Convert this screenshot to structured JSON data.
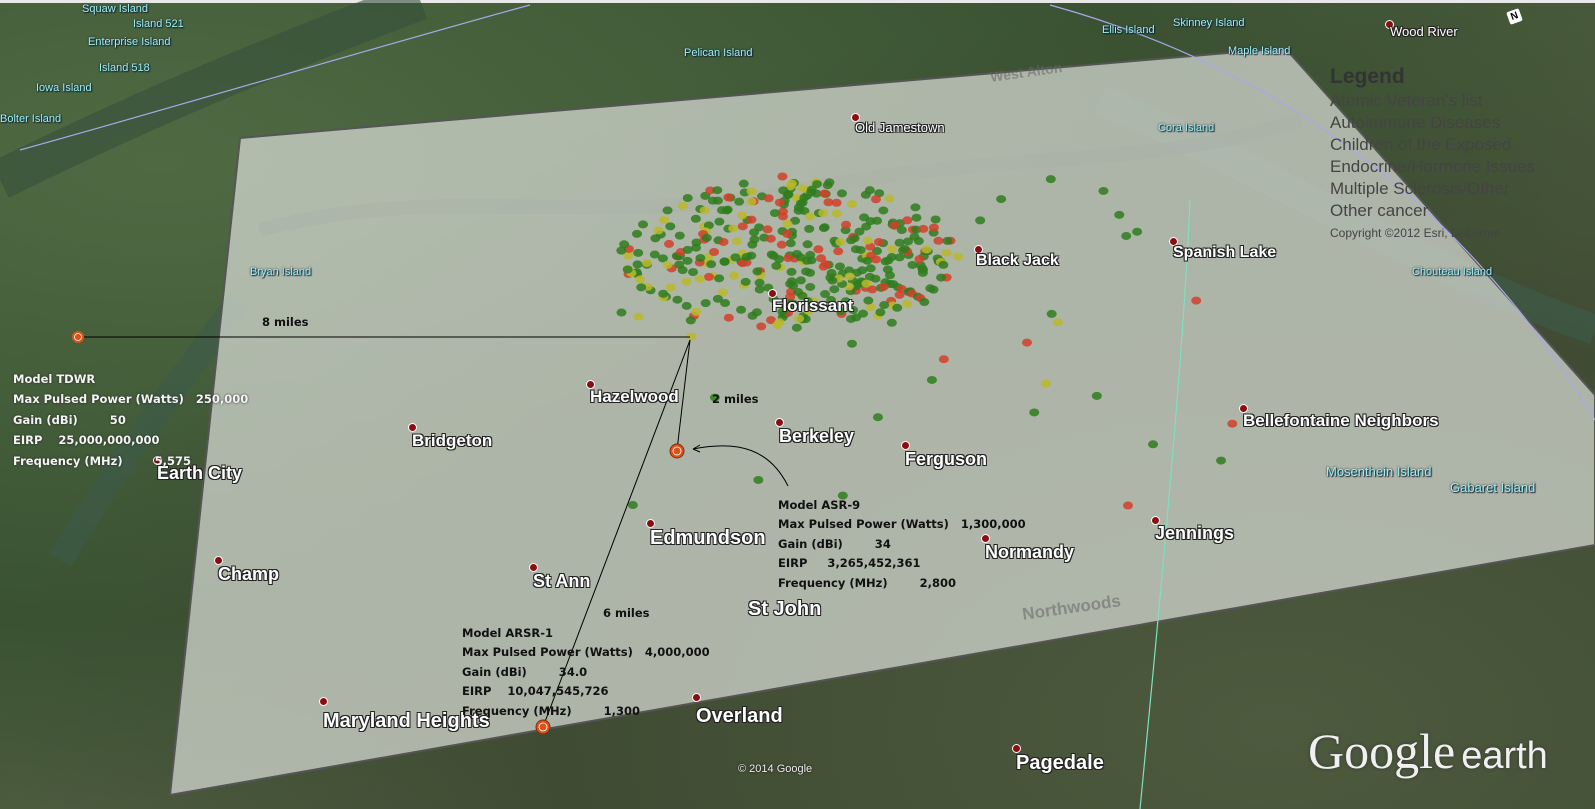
{
  "islands": [
    "Squaw Island",
    "Island 521",
    "Enterprise Island",
    "Island 518",
    "Iowa Island",
    "Bolter Island",
    "Pelican Island",
    "Ellis Island",
    "Skinney Island",
    "Maple Island",
    "Cora Island",
    "Bryan Island",
    "Chouteau Island",
    "Mosenthein Island",
    "Gabaret Island"
  ],
  "places": [
    "Wood River",
    "Old Jamestown",
    "Black Jack",
    "Spanish Lake",
    "Florissant",
    "Hazelwood",
    "Bridgeton",
    "Earth City",
    "Berkeley",
    "Ferguson",
    "Bellefontaine Neighbors",
    "Edmundson",
    "Normandy",
    "Jennings",
    "Champ",
    "St Ann",
    "St John",
    "Maryland Heights",
    "Overland",
    "Pagedale"
  ],
  "overlay_ghost_labels": [
    "West Alton",
    "Northwoods"
  ],
  "legend": {
    "title": "Legend",
    "items": [
      "Atomic Veteran's list",
      "Autoimmune Diseases",
      "Children of the Exposed",
      "Endocrine/Hormone Issues",
      "Multiple Sclerosis/Other",
      "Other cancer"
    ],
    "copyright": "Copyright ©2012 Esri, DeLorme"
  },
  "radars": [
    {
      "lines": [
        "Model TDWR",
        "Max Pulsed Power (Watts)   250,000",
        "Gain (dBi)        50",
        "EIRP    25,000,000,000",
        "Frequency (MHz)        5,575"
      ],
      "distance": "8 miles"
    },
    {
      "lines": [
        "Model ASR-9",
        "Max Pulsed Power (Watts)   1,300,000",
        "Gain (dBi)        34",
        "EIRP     3,265,452,361",
        "Frequency (MHz)        2,800"
      ],
      "distance": "2 miles"
    },
    {
      "lines": [
        "Model ARSR-1",
        "Max Pulsed Power (Watts)   4,000,000",
        "Gain (dBi)        34.0",
        "EIRP    10,047,545,726",
        "Frequency (MHz)        1,300"
      ],
      "distance": "6 miles"
    }
  ],
  "colors": {
    "marker_green": "#2f7d1f",
    "marker_yellow": "#b9b92a",
    "marker_red": "#d2412a",
    "radar_icon": "#d9531a",
    "pin": "#8b0d12",
    "island_label": "#9ef0f0"
  },
  "footer": {
    "imagery_copyright": "© 2014 Google",
    "logo": "Google earth",
    "compass": "N"
  }
}
